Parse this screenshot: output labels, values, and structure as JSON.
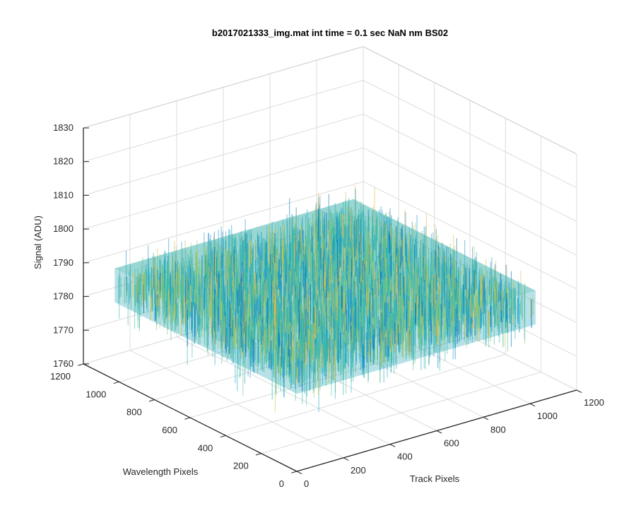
{
  "chart_data": {
    "type": "surface",
    "title": "b2017021333_img.mat int time = 0.1 sec  NaN nm BS02",
    "zlabel": "Signal (ADU)",
    "xlabel": "Track Pixels",
    "ylabel": "Wavelength Pixels",
    "xlim": [
      0,
      1200
    ],
    "ylim": [
      0,
      1200
    ],
    "zlim": [
      1760,
      1830
    ],
    "xticks": [
      "0",
      "200",
      "400",
      "600",
      "800",
      "1000",
      "1200"
    ],
    "yticks": [
      "0",
      "200",
      "400",
      "600",
      "800",
      "1000",
      "1200"
    ],
    "zticks": [
      "1760",
      "1770",
      "1780",
      "1790",
      "1800",
      "1810",
      "1820",
      "1830"
    ],
    "surface": {
      "x_range": [
        0,
        1024
      ],
      "y_range": [
        0,
        1024
      ],
      "mean": 1788,
      "min_approx": 1765,
      "max_approx": 1824,
      "colormap": "parula"
    },
    "grid": true,
    "box": true
  }
}
